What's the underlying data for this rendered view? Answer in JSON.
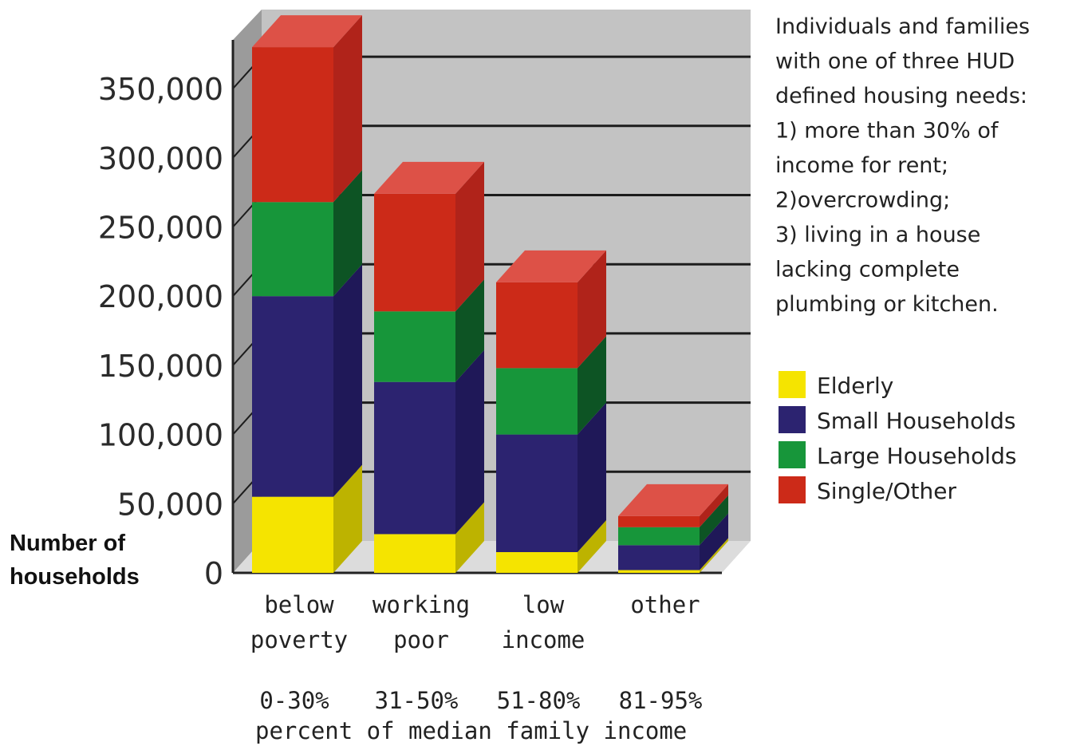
{
  "chart_data": {
    "type": "bar",
    "stacked": true,
    "three_d": true,
    "categories": [
      "below poverty",
      "working poor",
      "low income",
      "other"
    ],
    "category_labels": [
      [
        "below",
        "poverty"
      ],
      [
        "working",
        "poor"
      ],
      [
        "low",
        "income"
      ],
      [
        "other"
      ]
    ],
    "income_ranges": [
      "0-30%",
      "31-50%",
      "51-80%",
      "81-95%"
    ],
    "xlabel": "percent of median family income",
    "ylabel": "Number of households",
    "ylabel_lines": [
      "Number of",
      "households"
    ],
    "ylim": [
      0,
      375000
    ],
    "yticks": [
      0,
      50000,
      100000,
      150000,
      200000,
      250000,
      300000,
      350000
    ],
    "ytick_labels": [
      "0",
      "50,000",
      "100,000",
      "150,000",
      "200,000",
      "250,000",
      "300,000",
      "350,000"
    ],
    "series": [
      {
        "name": "Elderly",
        "color": "#f5e400",
        "side": "#bdb300",
        "top": "#fff27a",
        "values": [
          55000,
          28000,
          15000,
          2000
        ]
      },
      {
        "name": "Small Households",
        "color": "#2c2370",
        "side": "#1f1858",
        "top": "#4a40a0",
        "values": [
          145000,
          110000,
          85000,
          18000
        ]
      },
      {
        "name": "Large Households",
        "color": "#17963a",
        "side": "#0d5424",
        "top": "#3db35a",
        "values": [
          68000,
          51000,
          48000,
          13000
        ]
      },
      {
        "name": "Single/Other",
        "color": "#cc2a18",
        "side": "#b0231a",
        "top": "#dd5147",
        "values": [
          112000,
          85000,
          62000,
          8000
        ]
      }
    ],
    "grid": true,
    "legend": "right",
    "note_lines": [
      "Individuals and families",
      "with one of three HUD",
      "defined housing needs:",
      "1) more than 30% of",
      "income for rent;",
      "2)overcrowding;",
      "3) living in a house",
      "lacking complete",
      "plumbing or kitchen."
    ]
  }
}
